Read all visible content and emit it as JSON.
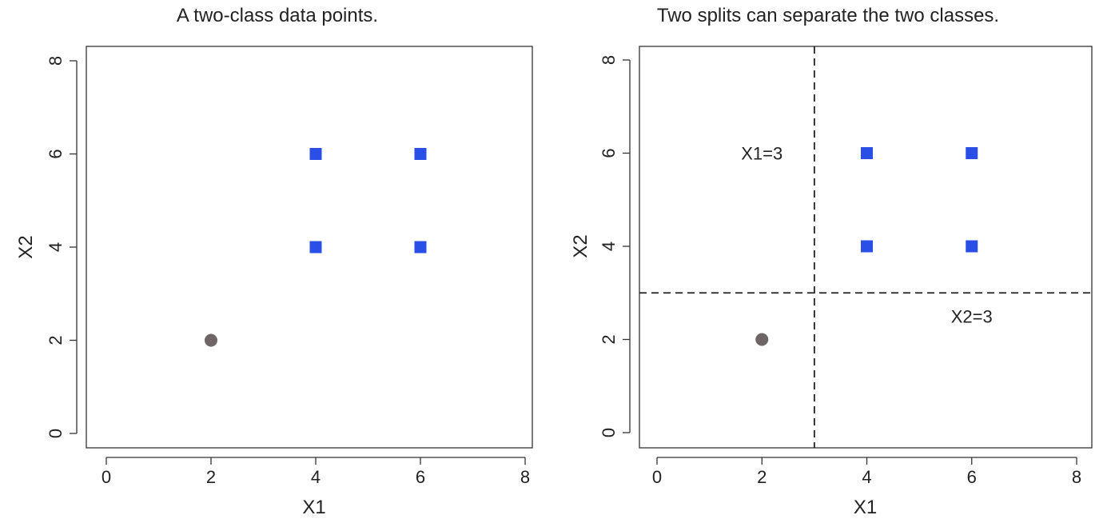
{
  "chart_data": [
    {
      "type": "scatter",
      "title": "A two-class data points.",
      "xlabel": "X1",
      "ylabel": "X2",
      "xlim": [
        0,
        8
      ],
      "ylim": [
        0,
        8
      ],
      "xticks": [
        "0",
        "2",
        "4",
        "6",
        "8"
      ],
      "yticks": [
        "0",
        "2",
        "4",
        "6",
        "8"
      ],
      "grid": false,
      "series": [
        {
          "marker": "circle",
          "color": "#6e6666",
          "points": [
            [
              2,
              2
            ]
          ]
        },
        {
          "marker": "square",
          "color": "#2a4fe6",
          "points": [
            [
              4,
              4
            ],
            [
              4,
              6
            ],
            [
              6,
              4
            ],
            [
              6,
              6
            ]
          ]
        }
      ],
      "lines": [],
      "annotations": []
    },
    {
      "type": "scatter",
      "title": "Two splits can separate the two classes.",
      "xlabel": "X1",
      "ylabel": "X2",
      "xlim": [
        0,
        8
      ],
      "ylim": [
        0,
        8
      ],
      "xticks": [
        "0",
        "2",
        "4",
        "6",
        "8"
      ],
      "yticks": [
        "0",
        "2",
        "4",
        "6",
        "8"
      ],
      "grid": false,
      "series": [
        {
          "marker": "circle",
          "color": "#6e6666",
          "points": [
            [
              2,
              2
            ]
          ]
        },
        {
          "marker": "square",
          "color": "#2a4fe6",
          "points": [
            [
              4,
              4
            ],
            [
              4,
              6
            ],
            [
              6,
              4
            ],
            [
              6,
              6
            ]
          ]
        }
      ],
      "lines": [
        {
          "orientation": "vertical",
          "value": 3,
          "style": "dashed"
        },
        {
          "orientation": "horizontal",
          "value": 3,
          "style": "dashed"
        }
      ],
      "annotations": [
        {
          "text": "X1=3",
          "x": 2,
          "y": 6
        },
        {
          "text": "X2=3",
          "x": 6,
          "y": 2.5
        }
      ]
    }
  ]
}
